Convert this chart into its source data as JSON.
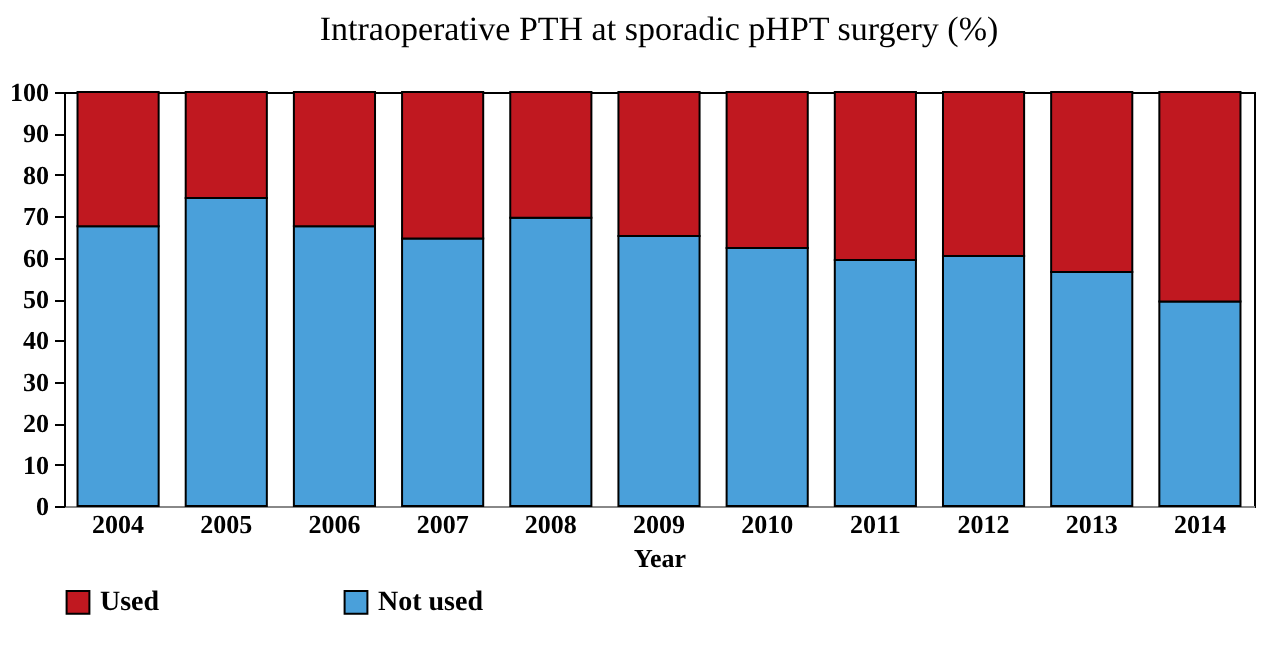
{
  "chart_data": {
    "type": "bar",
    "title": "Intraoperative PTH at sporadic pHPT surgery (%)",
    "xlabel": "Year",
    "categories": [
      "2004",
      "2005",
      "2006",
      "2007",
      "2008",
      "2009",
      "2010",
      "2011",
      "2012",
      "2013",
      "2014"
    ],
    "stacked": true,
    "series": [
      {
        "name": "Not used",
        "color": "#4aa0da",
        "values": [
          67.6,
          74.4,
          67.6,
          64.6,
          69.6,
          65.2,
          62.3,
          59.4,
          60.4,
          56.5,
          49.4
        ]
      },
      {
        "name": "Used",
        "color": "#c01820",
        "values": [
          32.4,
          25.6,
          32.4,
          35.4,
          30.4,
          34.8,
          37.7,
          40.6,
          39.6,
          43.5,
          50.6
        ]
      }
    ],
    "ylim": [
      0,
      100
    ],
    "yticks": [
      0,
      10,
      20,
      30,
      40,
      50,
      60,
      70,
      80,
      90,
      100
    ],
    "grid": false,
    "legend": "bottom"
  }
}
